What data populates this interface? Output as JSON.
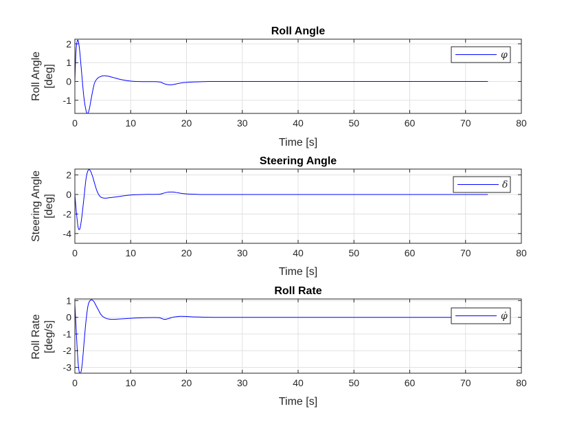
{
  "figure": {
    "background": "#ffffff"
  },
  "chart_data": [
    {
      "type": "line",
      "title": "Roll Angle",
      "xlabel": "Time [s]",
      "ylabel": [
        "Roll Angle",
        "[deg]"
      ],
      "xlim": [
        0,
        80
      ],
      "ylim": [
        -1.7,
        2.25
      ],
      "xticks": [
        0,
        10,
        20,
        30,
        40,
        50,
        60,
        70,
        80
      ],
      "yticks": [
        -1,
        0,
        1,
        2
      ],
      "grid": true,
      "legend": {
        "placement": "top-right",
        "entries": [
          "φ"
        ]
      },
      "series": [
        {
          "name": "φ",
          "color": "#0000ff",
          "x": [
            0,
            0.2,
            0.5,
            0.8,
            1.2,
            1.6,
            2.0,
            2.3,
            2.6,
            3.0,
            3.5,
            4.0,
            4.5,
            5.0,
            5.5,
            6.0,
            6.5,
            7.0,
            8.0,
            9.0,
            10.0,
            11.0,
            12.0,
            13.0,
            14.0,
            15.0,
            15.5,
            16.0,
            16.5,
            17.0,
            17.5,
            18.0,
            18.5,
            19.0,
            20.0,
            21.0,
            22.0,
            23.0,
            24.0,
            26.0,
            30.0,
            40.0,
            50.0,
            60.0,
            70.0,
            74.0
          ],
          "y": [
            0,
            1.6,
            2.2,
            1.8,
            0.5,
            -0.8,
            -1.55,
            -1.7,
            -1.45,
            -0.8,
            -0.1,
            0.15,
            0.25,
            0.3,
            0.3,
            0.28,
            0.24,
            0.2,
            0.12,
            0.06,
            0.02,
            0.0,
            -0.01,
            -0.01,
            -0.01,
            -0.02,
            -0.05,
            -0.12,
            -0.16,
            -0.18,
            -0.17,
            -0.14,
            -0.11,
            -0.08,
            -0.05,
            -0.03,
            -0.02,
            -0.01,
            0,
            0,
            0,
            0,
            0,
            0,
            0,
            0
          ]
        }
      ]
    },
    {
      "type": "line",
      "title": "Steering Angle",
      "xlabel": "Time [s]",
      "ylabel": [
        "Steering Angle",
        "[deg]"
      ],
      "xlim": [
        0,
        80
      ],
      "ylim": [
        -5,
        2.6
      ],
      "xticks": [
        0,
        10,
        20,
        30,
        40,
        50,
        60,
        70,
        80
      ],
      "yticks": [
        -4,
        -2,
        0,
        2
      ],
      "grid": true,
      "legend": {
        "placement": "top-right",
        "entries": [
          "δ"
        ]
      },
      "series": [
        {
          "name": "δ",
          "color": "#0000ff",
          "x": [
            0,
            0.3,
            0.6,
            0.9,
            1.2,
            1.6,
            2.0,
            2.4,
            2.8,
            3.2,
            3.6,
            4.0,
            4.5,
            5.0,
            5.5,
            6.0,
            7.0,
            8.0,
            9.0,
            10.0,
            11.0,
            12.0,
            13.0,
            14.0,
            15.0,
            15.5,
            16.0,
            16.5,
            17.0,
            17.5,
            18.0,
            18.5,
            19.0,
            20.0,
            21.0,
            22.0,
            23.0,
            25.0,
            30.0,
            40.0,
            50.0,
            60.0,
            70.0,
            74.0
          ],
          "y": [
            0,
            -2.0,
            -3.4,
            -3.5,
            -2.5,
            -0.5,
            1.6,
            2.5,
            2.4,
            1.8,
            1.0,
            0.3,
            -0.2,
            -0.35,
            -0.38,
            -0.35,
            -0.28,
            -0.2,
            -0.12,
            -0.06,
            -0.02,
            0.0,
            0.01,
            0.01,
            0.02,
            0.06,
            0.15,
            0.22,
            0.25,
            0.25,
            0.22,
            0.17,
            0.12,
            0.06,
            0.03,
            0.01,
            0.0,
            0,
            0,
            0,
            0,
            0,
            0,
            0
          ]
        }
      ]
    },
    {
      "type": "line",
      "title": "Roll Rate",
      "xlabel": "Time [s]",
      "ylabel": [
        "Roll Rate",
        "[deg/s]"
      ],
      "xlim": [
        0,
        80
      ],
      "ylim": [
        -3.35,
        1.1
      ],
      "xticks": [
        0,
        10,
        20,
        30,
        40,
        50,
        60,
        70,
        80
      ],
      "yticks": [
        -3,
        -2,
        -1,
        0,
        1
      ],
      "grid": true,
      "legend": {
        "placement": "top-right",
        "entries": [
          "φ̇"
        ]
      },
      "series": [
        {
          "name": "φ̇",
          "color": "#0000ff",
          "x": [
            0,
            0.2,
            0.4,
            0.6,
            0.8,
            1.0,
            1.2,
            1.4,
            1.6,
            1.8,
            2.0,
            2.3,
            2.6,
            3.0,
            3.4,
            3.8,
            4.2,
            4.6,
            5.0,
            5.5,
            6.0,
            6.5,
            7.0,
            8.0,
            9.0,
            10.0,
            11.0,
            12.0,
            13.0,
            14.0,
            15.0,
            15.5,
            16.0,
            16.5,
            17.0,
            17.5,
            18.0,
            18.5,
            19.0,
            20.0,
            21.0,
            22.0,
            23.0,
            25.0,
            30.0,
            40.0,
            50.0,
            60.0,
            70.0,
            74.0
          ],
          "y": [
            0.8,
            -0.5,
            -1.8,
            -2.8,
            -3.3,
            -3.35,
            -3.1,
            -2.5,
            -1.7,
            -0.9,
            -0.2,
            0.6,
            0.95,
            1.05,
            0.95,
            0.7,
            0.45,
            0.2,
            0.05,
            -0.05,
            -0.1,
            -0.12,
            -0.12,
            -0.1,
            -0.08,
            -0.06,
            -0.04,
            -0.03,
            -0.02,
            -0.01,
            -0.02,
            -0.06,
            -0.12,
            -0.1,
            -0.05,
            0.0,
            0.03,
            0.05,
            0.06,
            0.05,
            0.03,
            0.02,
            0.01,
            0,
            0,
            0,
            0,
            0,
            0,
            0
          ]
        }
      ]
    }
  ]
}
